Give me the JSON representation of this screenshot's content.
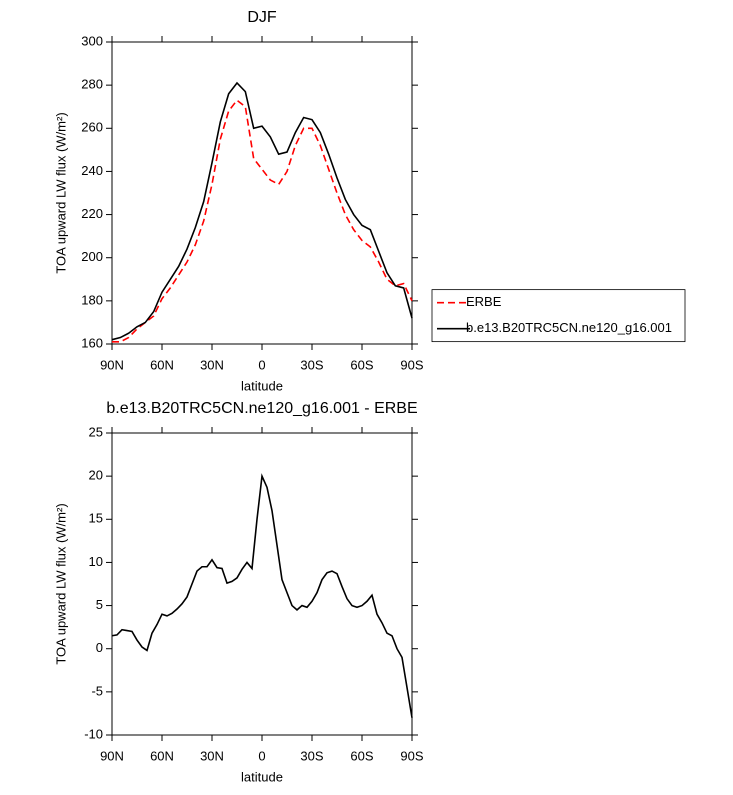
{
  "chart_data": [
    {
      "type": "line",
      "title": "DJF",
      "xlabel": "latitude",
      "ylabel": "TOA upward LW flux (W/m²)",
      "x": [
        90,
        85,
        80,
        75,
        70,
        65,
        60,
        55,
        50,
        45,
        40,
        35,
        30,
        25,
        20,
        15,
        10,
        5,
        0,
        -5,
        -10,
        -15,
        -20,
        -25,
        -30,
        -35,
        -40,
        -45,
        -50,
        -55,
        -60,
        -65,
        -70,
        -75,
        -80,
        -85,
        -90
      ],
      "series": [
        {
          "name": "ERBE",
          "color": "#ff0000",
          "linestyle": "dashed",
          "values": [
            161,
            161,
            163,
            167,
            170,
            173,
            181,
            186,
            192,
            198,
            206,
            217,
            234,
            255,
            268,
            273,
            270,
            246,
            241,
            236,
            234,
            240,
            252,
            260,
            260,
            252,
            241,
            230,
            220,
            213,
            208,
            205,
            198,
            190,
            187,
            188,
            180
          ]
        },
        {
          "name": "b.e13.B20TRC5CN.ne120_g16.001",
          "color": "#000000",
          "linestyle": "solid",
          "values": [
            162,
            163,
            165,
            168,
            170,
            175,
            184,
            190,
            196,
            204,
            214,
            226,
            244,
            263,
            276,
            281,
            277,
            260,
            261,
            256,
            248,
            249,
            258,
            265,
            264,
            258,
            248,
            237,
            227,
            220,
            215,
            213,
            203,
            193,
            187,
            186,
            172
          ]
        }
      ],
      "xlim": [
        90,
        -90
      ],
      "xticks": [
        {
          "value": 90,
          "label": "90N"
        },
        {
          "value": 60,
          "label": "60N"
        },
        {
          "value": 30,
          "label": "30N"
        },
        0,
        {
          "value": -30,
          "label": "30S"
        },
        {
          "value": -60,
          "label": "60S"
        },
        {
          "value": -90,
          "label": "90S"
        }
      ],
      "ylim": [
        160,
        300
      ],
      "yticks": [
        160,
        180,
        200,
        220,
        240,
        260,
        280,
        300
      ],
      "legend": "outside-right"
    },
    {
      "type": "line",
      "title": "b.e13.B20TRC5CN.ne120_g16.001 - ERBE",
      "xlabel": "latitude",
      "ylabel": "TOA upward LW flux (W/m²)",
      "x": [
        90,
        87,
        84,
        81,
        78,
        75,
        72,
        69,
        66,
        63,
        60,
        57,
        54,
        51,
        48,
        45,
        42,
        39,
        36,
        33,
        30,
        27,
        24,
        21,
        18,
        15,
        12,
        9,
        6,
        3,
        0,
        -3,
        -6,
        -9,
        -12,
        -15,
        -18,
        -21,
        -24,
        -27,
        -30,
        -33,
        -36,
        -39,
        -42,
        -45,
        -48,
        -51,
        -54,
        -57,
        -60,
        -63,
        -66,
        -69,
        -72,
        -75,
        -78,
        -81,
        -84,
        -87,
        -90
      ],
      "color": "#000000",
      "values": [
        1.5,
        1.6,
        2.2,
        2.1,
        2,
        1,
        0.2,
        -0.2,
        1.8,
        2.8,
        4,
        3.8,
        4.1,
        4.6,
        5.2,
        6,
        7.5,
        9,
        9.5,
        9.5,
        10.3,
        9.4,
        9.3,
        7.6,
        7.8,
        8.2,
        9.2,
        10,
        9.3,
        15,
        20,
        18.7,
        16,
        12,
        8,
        6.5,
        5,
        4.5,
        5,
        4.8,
        5.5,
        6.5,
        8,
        8.8,
        9,
        8.7,
        7.2,
        5.8,
        5,
        4.8,
        5,
        5.5,
        6.2,
        4,
        3,
        1.8,
        1.5,
        0,
        -1,
        -4.5,
        -8
      ],
      "xlim": [
        90,
        -90
      ],
      "xticks": [
        {
          "value": 90,
          "label": "90N"
        },
        {
          "value": 60,
          "label": "60N"
        },
        {
          "value": 30,
          "label": "30N"
        },
        0,
        {
          "value": -30,
          "label": "30S"
        },
        {
          "value": -60,
          "label": "60S"
        },
        {
          "value": -90,
          "label": "90S"
        }
      ],
      "ylim": [
        -10,
        25
      ],
      "yticks": [
        -10,
        -5,
        0,
        5,
        10,
        15,
        20,
        25
      ]
    }
  ]
}
